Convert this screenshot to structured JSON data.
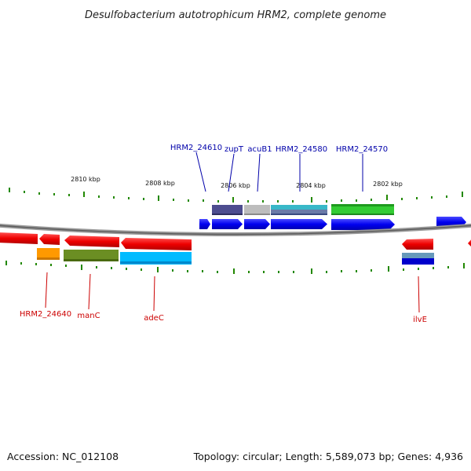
{
  "title": "Desulfobacterium autotrophicum HRM2, complete genome",
  "footer": {
    "accession": "Accession: NC_012108",
    "topology": "Topology: circular; Length: 5,589,073 bp; Genes: 4,936"
  },
  "scale_labels": [
    "2810 kbp",
    "2808 kbp",
    "2806 kbp",
    "2804 kbp",
    "2802 kbp"
  ],
  "gene_labels_top": [
    "HRM2_24610",
    "zupT",
    "acuB1",
    "HRM2_24580",
    "HRM2_24570"
  ],
  "gene_labels_bottom": [
    "HRM2_24640",
    "manC",
    "adeC",
    "ilvE"
  ],
  "colors": {
    "forward_strand": "#0000ff",
    "reverse_strand": "#ff0000",
    "label_forward": "#0000aa",
    "label_reverse": "#cc0000",
    "tick": "#228800",
    "backbone": "#888888"
  }
}
